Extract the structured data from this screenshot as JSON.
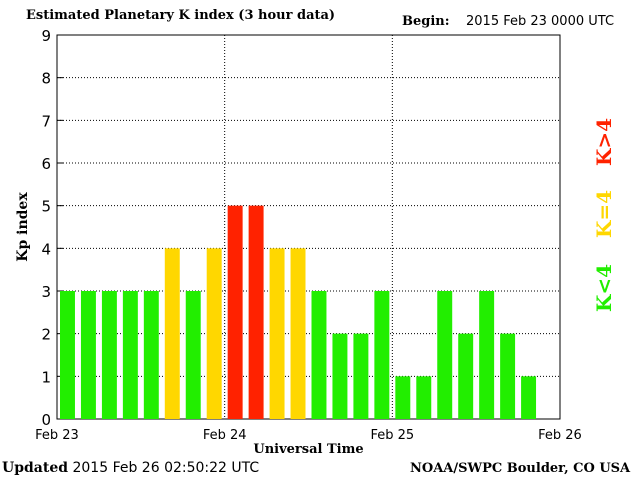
{
  "header": {
    "title": "Estimated Planetary K index (3 hour data)",
    "begin_label": "Begin:",
    "begin_value": "2015 Feb 23 0000 UTC"
  },
  "footer": {
    "updated_label": "Updated",
    "updated_value": "2015 Feb 26 02:50:22 UTC",
    "credit": "NOAA/SWPC Boulder, CO USA"
  },
  "legend": [
    {
      "label": "K<4",
      "color": "#22ee00"
    },
    {
      "label": "K=4",
      "color": "#ffd700"
    },
    {
      "label": "K>4",
      "color": "#ff2200"
    }
  ],
  "chart_data": {
    "type": "bar",
    "title": "Estimated Planetary K index (3 hour data)",
    "xlabel": "Universal Time",
    "ylabel": "Kp index",
    "ylim": [
      0,
      9
    ],
    "yticks": [
      0,
      1,
      2,
      3,
      4,
      5,
      6,
      7,
      8,
      9
    ],
    "xticks": [
      "Feb 23",
      "Feb 24",
      "Feb 25",
      "Feb 26"
    ],
    "grid": true,
    "bar_interval_hours": 3,
    "values": [
      3,
      3,
      3,
      3,
      3,
      4,
      3,
      4,
      5,
      5,
      4,
      4,
      3,
      2,
      2,
      3,
      1,
      1,
      3,
      2,
      3,
      2,
      1
    ],
    "colors": {
      "below": "#22ee00",
      "equal": "#ffd700",
      "above": "#ff2200"
    }
  }
}
